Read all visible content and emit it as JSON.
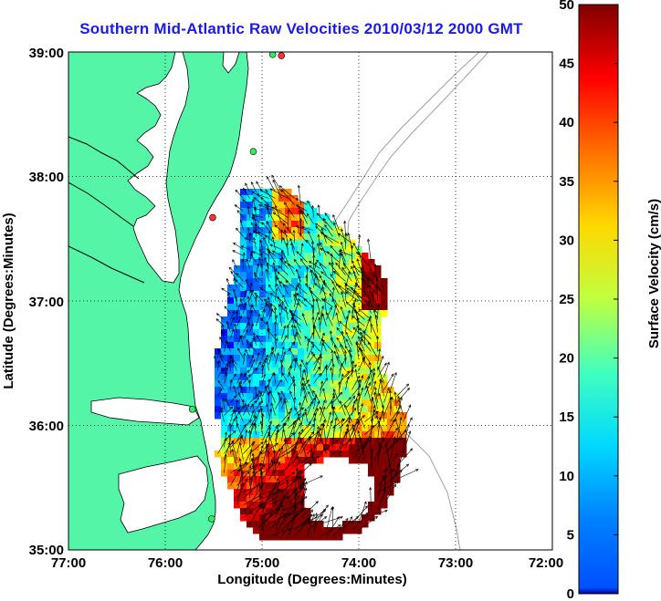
{
  "title": "Southern Mid-Atlantic Raw Velocities 2010/03/12 2000 GMT",
  "map": {
    "lon_range": [
      -77,
      -72
    ],
    "lat_range": [
      35,
      39
    ],
    "lon_ticks": [
      "77:00",
      "76:00",
      "75:00",
      "74:00",
      "73:00",
      "72:00"
    ],
    "lat_ticks": [
      "39:00",
      "38:00",
      "37:00",
      "36:00",
      "35:00"
    ],
    "xlabel": "Longitude (Degrees:Minutes)",
    "ylabel": "Latitude (Degrees:Minutes)",
    "grid": "dotted",
    "land_color": "#55f5a8",
    "coast_color": "#000000",
    "bathymetry_color": "#a0a0a0"
  },
  "colorbar": {
    "label": "Surface Velocity (cm/s)",
    "range": [
      0,
      50
    ],
    "ticks": [
      "0",
      "5",
      "10",
      "15",
      "20",
      "25",
      "30",
      "35",
      "40",
      "45",
      "50"
    ],
    "colormap": "jet"
  },
  "stations": [
    {
      "lon": -74.8,
      "lat": 38.97,
      "color": "#ff3030"
    },
    {
      "lon": -74.89,
      "lat": 38.98,
      "color": "#30ee60"
    },
    {
      "lon": -75.09,
      "lat": 38.2,
      "color": "#30ee60"
    },
    {
      "lon": -75.51,
      "lat": 37.67,
      "color": "#ff3030"
    },
    {
      "lon": -75.72,
      "lat": 36.13,
      "color": "#30ee60"
    },
    {
      "lon": -75.52,
      "lat": 35.25,
      "color": "#30ee60"
    }
  ]
}
